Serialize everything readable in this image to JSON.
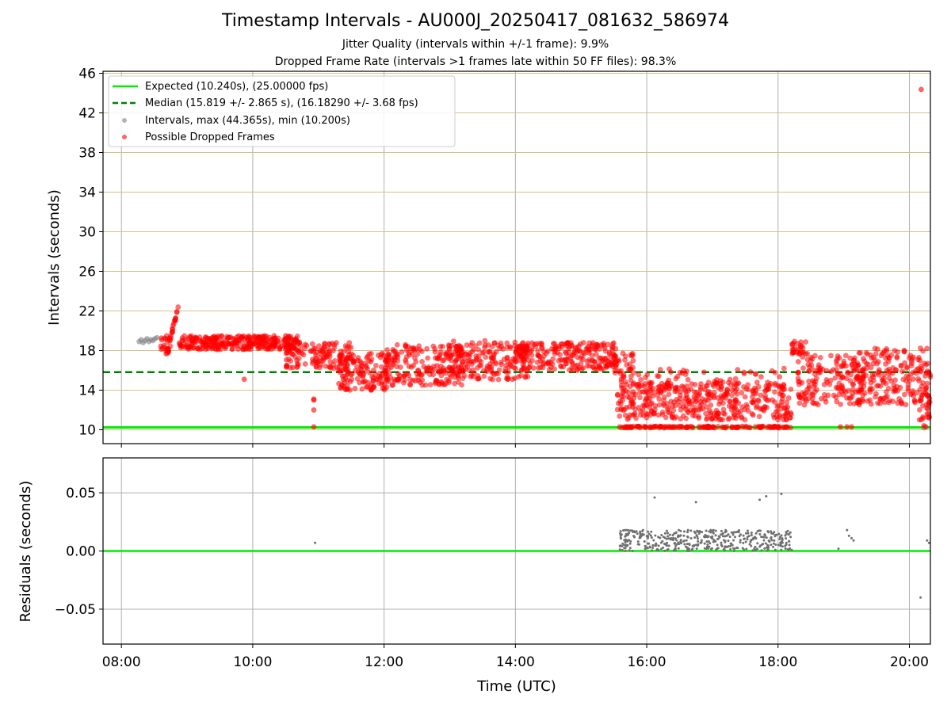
{
  "figure": {
    "title": "Timestamp Intervals - AU000J_20250417_081632_586974",
    "subtitle_jitter": "Jitter Quality (intervals within +/-1 frame): 9.9%",
    "subtitle_dropped": "Dropped Frame Rate (intervals >1 frames late within 50 FF files): 98.3%",
    "colors": {
      "expected": "#00ee00",
      "median": "#008000",
      "intervals": "#808080",
      "dropped": "#ff0000",
      "hgrid_top": "#d4c28a",
      "grid": "#b0b0b0"
    }
  },
  "chart_data": [
    {
      "type": "scatter",
      "title": "",
      "xlabel": "",
      "ylabel": "Intervals (seconds)",
      "xlim_hours": [
        7.72,
        20.32
      ],
      "ylim": [
        8.6,
        46.2
      ],
      "xticks": [
        {
          "value": 8,
          "label": "08:00"
        },
        {
          "value": 10,
          "label": "10:00"
        },
        {
          "value": 12,
          "label": "12:00"
        },
        {
          "value": 14,
          "label": "14:00"
        },
        {
          "value": 16,
          "label": "16:00"
        },
        {
          "value": 18,
          "label": "18:00"
        },
        {
          "value": 20,
          "label": "20:00"
        }
      ],
      "yticks": [
        10,
        14,
        18,
        22,
        26,
        30,
        34,
        38,
        42,
        46
      ],
      "grid": true,
      "legend_position": "top-left",
      "legend": [
        {
          "label": "Expected (10.240s), (25.00000 fps)",
          "kind": "line-solid",
          "color": "#00ee00"
        },
        {
          "label": "Median (15.819 +/- 2.865 s), (16.18290 +/- 3.68 fps)",
          "kind": "line-dashed",
          "color": "#008000"
        },
        {
          "label": "Intervals, max (44.365s), min (10.200s)",
          "kind": "marker",
          "color": "#808080"
        },
        {
          "label": "Possible Dropped Frames",
          "kind": "marker",
          "color": "#ff0000"
        }
      ],
      "expected_value": 10.24,
      "median_value": 15.819,
      "intervals_gray": {
        "x_hours": [
          8.27,
          8.3,
          8.33,
          8.36,
          8.39,
          8.42,
          8.45,
          8.48,
          8.51,
          8.54,
          20.22
        ],
        "y": [
          18.9,
          19.1,
          18.8,
          19.0,
          19.2,
          18.9,
          19.1,
          19.0,
          19.2,
          19.3,
          10.2
        ]
      },
      "dropped_segments": [
        {
          "x_range": [
            8.58,
            8.75
          ],
          "y_range": [
            17.5,
            19.5
          ],
          "n": 25
        },
        {
          "x_range": [
            8.7,
            8.88
          ],
          "y_trend": [
            18.0,
            22.8
          ],
          "spread": 0.4,
          "n": 22
        },
        {
          "x_range": [
            8.88,
            10.7
          ],
          "y_range": [
            18.1,
            19.5
          ],
          "n": 320
        },
        {
          "x_range": [
            10.5,
            11.5
          ],
          "y_range": [
            16.2,
            18.9
          ],
          "n": 130
        },
        {
          "x_range": [
            11.3,
            12.1
          ],
          "y_range": [
            14.0,
            17.8
          ],
          "n": 150
        },
        {
          "x_range": [
            12.0,
            13.2
          ],
          "y_range": [
            14.5,
            18.6
          ],
          "n": 190
        },
        {
          "x_range": [
            13.0,
            14.2
          ],
          "y_range": [
            15.0,
            19.0
          ],
          "n": 190
        },
        {
          "x_range": [
            14.0,
            15.55
          ],
          "y_range": [
            16.0,
            18.8
          ],
          "n": 240
        },
        {
          "x_range": [
            15.5,
            15.8
          ],
          "y_range": [
            14.5,
            17.8
          ],
          "n": 30
        },
        {
          "x_range": [
            15.55,
            18.2
          ],
          "y_range": [
            11.0,
            14.8
          ],
          "n": 430
        },
        {
          "x_range": [
            15.55,
            18.2
          ],
          "y_range": [
            10.2,
            10.35
          ],
          "n": 140
        },
        {
          "x_range": [
            15.6,
            18.15
          ],
          "y_range": [
            14.8,
            16.3
          ],
          "n": 40
        },
        {
          "x_range": [
            18.2,
            18.45
          ],
          "y_range": [
            17.5,
            19.0
          ],
          "n": 28
        },
        {
          "x_range": [
            18.3,
            19.3
          ],
          "y_range": [
            12.5,
            17.5
          ],
          "n": 170
        },
        {
          "x_range": [
            19.2,
            20.32
          ],
          "y_range": [
            12.5,
            18.3
          ],
          "n": 200
        },
        {
          "x_range": [
            20.15,
            20.32
          ],
          "y_range": [
            11.0,
            14.5
          ],
          "n": 25
        }
      ],
      "dropped_points": {
        "x_hours": [
          10.93,
          10.93,
          10.93,
          10.93,
          9.87,
          18.95,
          19.05,
          19.12,
          20.18,
          20.25,
          20.22
        ],
        "y": [
          13.0,
          13.1,
          12.0,
          10.3,
          15.1,
          10.3,
          10.3,
          10.3,
          44.365,
          10.3,
          10.4
        ]
      }
    },
    {
      "type": "scatter",
      "title": "",
      "xlabel": "Time (UTC)",
      "ylabel": "Residuals (seconds)",
      "xlim_hours": [
        7.72,
        20.32
      ],
      "ylim": [
        -0.08,
        0.08
      ],
      "yticks": [
        {
          "value": 0.05,
          "label": "0.05"
        },
        {
          "value": 0.0,
          "label": "0.00"
        },
        {
          "value": -0.05,
          "label": "−0.05"
        }
      ],
      "grid": true,
      "zero_line_color": "#00ee00",
      "residual_cluster": {
        "x_range": [
          15.58,
          18.22
        ],
        "y_range": [
          0.0,
          0.018
        ],
        "n": 420
      },
      "residual_points": {
        "x_hours": [
          10.95,
          16.12,
          16.75,
          17.72,
          17.82,
          18.05,
          18.92,
          19.05,
          19.08,
          19.12,
          19.15,
          20.17,
          20.27,
          20.3
        ],
        "y": [
          0.007,
          0.046,
          0.042,
          0.044,
          0.047,
          0.049,
          0.002,
          0.018,
          0.013,
          0.011,
          0.009,
          -0.04,
          0.009,
          0.007
        ]
      }
    }
  ]
}
